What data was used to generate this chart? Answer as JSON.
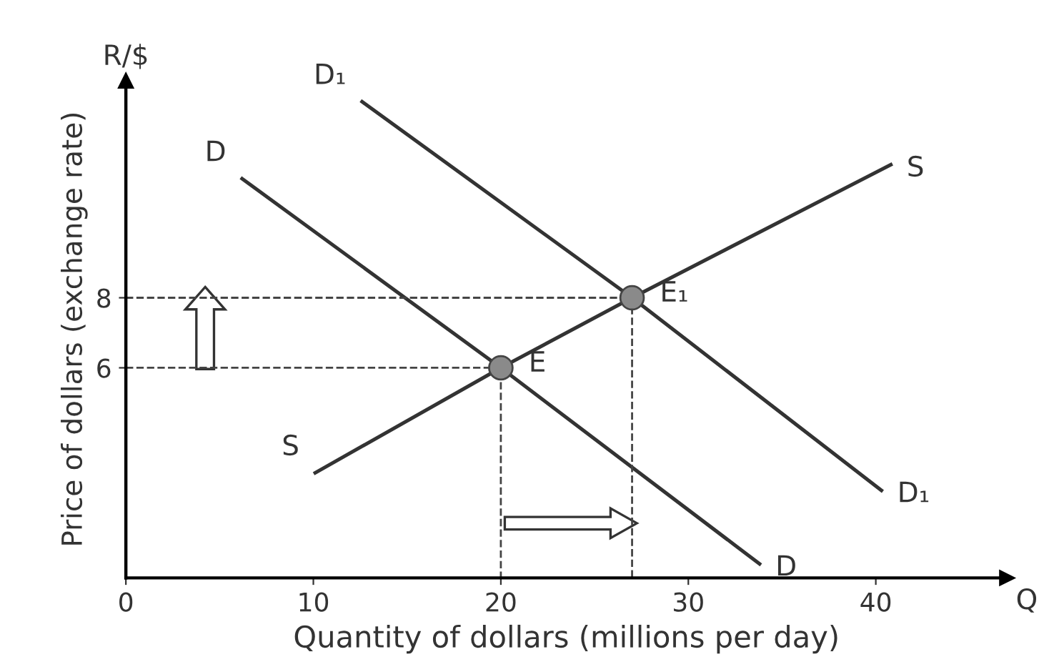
{
  "chart_data": {
    "type": "line",
    "xlabel": "Quantity of dollars (millions per day)",
    "ylabel": "Price of dollars (exchange rate)",
    "xlim": [
      0,
      47
    ],
    "ylim": [
      0,
      14.2
    ],
    "xticks": [
      0,
      10,
      20,
      30,
      40
    ],
    "yticks": [
      6,
      8
    ],
    "grid": false,
    "legend": false,
    "series": [
      {
        "name": "D",
        "color": "#333333",
        "x": [
          6.2,
          20,
          33.8
        ],
        "values": [
          11.4,
          6,
          0.4
        ],
        "marker": "none",
        "line_style": "solid"
      },
      {
        "name": "D₁",
        "color": "#333333",
        "x": [
          12.6,
          27,
          40.3
        ],
        "values": [
          13.6,
          8,
          2.5
        ],
        "marker": "none",
        "line_style": "solid"
      },
      {
        "name": "S",
        "color": "#333333",
        "x": [
          10.1,
          20,
          27,
          40.8
        ],
        "values": [
          3,
          6,
          8,
          11.8
        ],
        "marker": "none",
        "line_style": "solid"
      },
      {
        "color": "#444444",
        "x": [
          0,
          20,
          20
        ],
        "values": [
          6,
          6,
          0
        ],
        "marker": "none",
        "line_style": "dashed"
      },
      {
        "color": "#444444",
        "x": [
          0,
          27,
          27
        ],
        "values": [
          8,
          8,
          0
        ],
        "marker": "none",
        "line_style": "dashed"
      },
      {
        "type": "scatter",
        "color": "#8a8a8a",
        "x": [
          20,
          27
        ],
        "values": [
          6,
          8
        ],
        "marker": "circle"
      }
    ],
    "annotations": [
      "R/$",
      "Q",
      {
        "text": "D",
        "x": 6.2,
        "y": 11.4
      },
      {
        "text": "D₁",
        "x": 12.6,
        "y": 13.6
      },
      {
        "text": "S",
        "x": 10.1,
        "y": 3
      },
      {
        "text": "E",
        "x": 20,
        "y": 6
      },
      {
        "text": "E₁",
        "x": 27,
        "y": 8
      }
    ]
  }
}
